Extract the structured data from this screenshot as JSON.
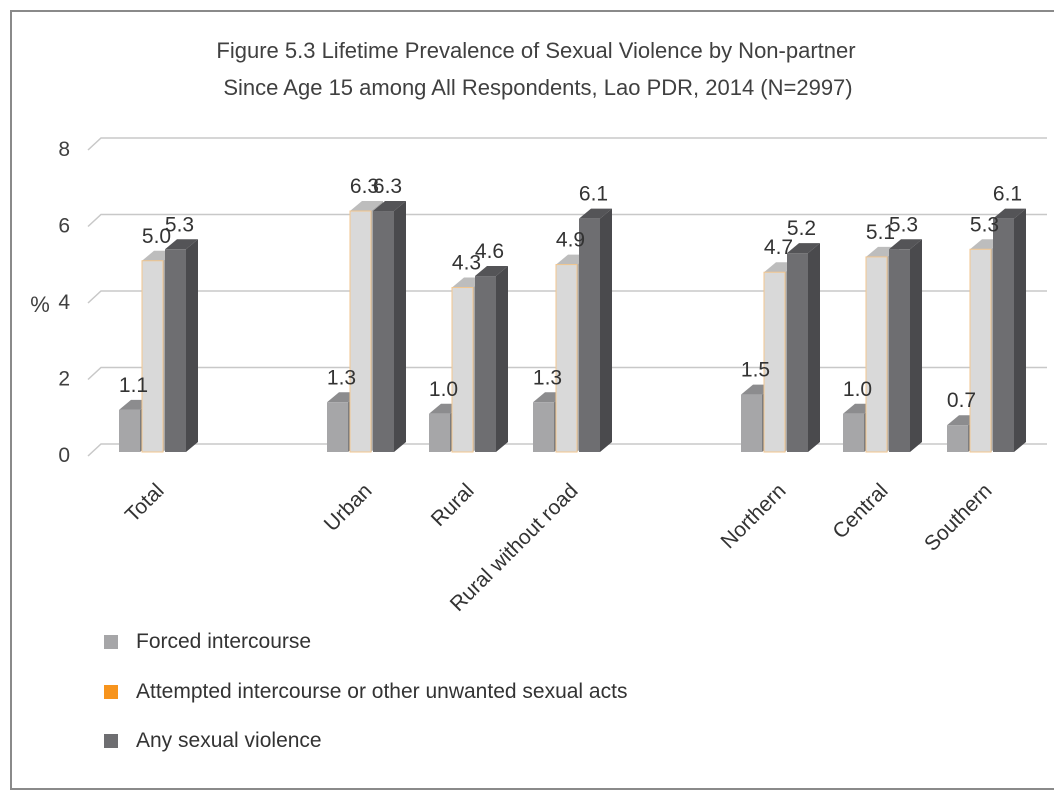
{
  "chart_data": {
    "type": "bar",
    "title_lines": [
      "Figure 5.3 Lifetime Prevalence of Sexual Violence by Non-partner",
      "Since Age 15 among All Respondents, Lao PDR, 2014 (N=2997)"
    ],
    "ylabel": "%",
    "ylim": [
      0,
      8
    ],
    "yticks": [
      "0",
      "2",
      "4",
      "6",
      "8"
    ],
    "grid": true,
    "legend_position": "bottom-left",
    "categories": [
      "Total",
      "Urban",
      "Rural",
      "Rural without road",
      "Northern",
      "Central",
      "Southern"
    ],
    "series": [
      {
        "name": "Forced intercourse",
        "color": "#a6a6a8",
        "values": [
          1.1,
          1.3,
          1.0,
          1.3,
          1.5,
          1.0,
          0.7
        ],
        "labels": [
          "1.1",
          "1.3",
          "1.0",
          "1.3",
          "1.5",
          "1.0",
          "0.7"
        ]
      },
      {
        "name": "Attempted intercourse or other unwanted sexual acts",
        "color": "#f7941d",
        "values": [
          5.0,
          6.3,
          4.3,
          4.9,
          4.7,
          5.1,
          5.3
        ],
        "labels": [
          "5.0",
          "6.3",
          "4.3",
          "4.9",
          "4.7",
          "5.1",
          "5.3"
        ]
      },
      {
        "name": "Any sexual violence",
        "color": "#6e6e71",
        "values": [
          5.3,
          6.3,
          4.6,
          6.1,
          5.2,
          5.3,
          6.1
        ],
        "labels": [
          "5.3",
          "6.3",
          "4.6",
          "6.1",
          "5.2",
          "5.3",
          "6.1"
        ]
      }
    ]
  }
}
